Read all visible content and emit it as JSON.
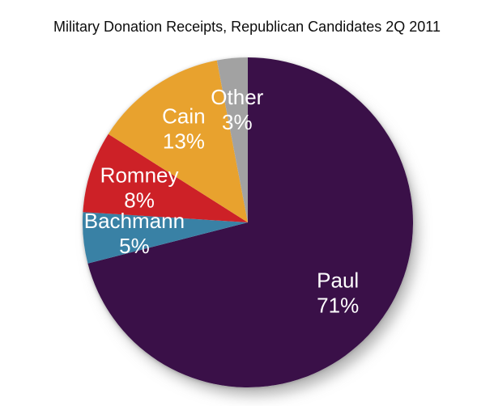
{
  "page": {
    "background": "#ffffff"
  },
  "title": "Military Donation Receipts, Republican Candidates 2Q 2011",
  "chart_data": {
    "type": "pie",
    "title": "Military Donation Receipts, Republican Candidates 2Q 2011",
    "start_angle_deg": 0,
    "direction": "clockwise",
    "legend": "none",
    "label_style": "name and percent inside slice, two lines, centered",
    "label_text_color": "#ffffff",
    "label_radius_fraction": 0.69,
    "slices": [
      {
        "label": "Paul",
        "value": 71,
        "percent_label": "71%",
        "color": "#3a1048"
      },
      {
        "label": "Bachmann",
        "value": 5,
        "percent_label": "5%",
        "color": "#3981a5"
      },
      {
        "label": "Romney",
        "value": 8,
        "percent_label": "8%",
        "color": "#cd2127"
      },
      {
        "label": "Cain",
        "value": 13,
        "percent_label": "13%",
        "color": "#e8a22e"
      },
      {
        "label": "Other",
        "value": 3,
        "percent_label": "3%",
        "color": "#a2a2a2"
      }
    ]
  }
}
